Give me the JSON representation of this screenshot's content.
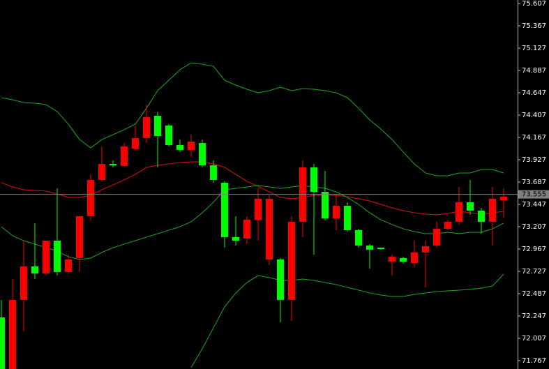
{
  "chart_data": {
    "type": "candlestick",
    "categories": [
      null,
      null,
      null,
      null,
      null,
      null,
      null,
      null,
      null,
      null,
      null,
      null,
      null,
      null,
      null,
      null,
      null,
      null,
      null,
      null,
      null,
      null,
      null,
      null,
      null,
      null,
      null,
      null,
      null,
      null,
      null,
      null,
      null,
      null,
      null,
      null,
      null,
      null,
      null,
      null,
      null,
      null,
      null,
      null,
      null,
      null
    ],
    "open": [
      72.232,
      71.677,
      72.42,
      72.78,
      72.705,
      73.057,
      72.72,
      72.87,
      73.32,
      73.71,
      73.882,
      73.86,
      74.047,
      74.16,
      74.4,
      74.295,
      74.085,
      74.032,
      74.107,
      73.867,
      73.68,
      73.095,
      73.08,
      73.282,
      72.855,
      72.855,
      72.42,
      73.26,
      73.845,
      73.582,
      73.297,
      73.432,
      73.17,
      73.005,
      72.982,
      72.832,
      72.87,
      72.817,
      72.93,
      73.005,
      73.185,
      73.26,
      73.47,
      73.38,
      73.26,
      73.492
    ],
    "high": [
      72.42,
      72.644,
      73.057,
      73.245,
      73.057,
      73.62,
      72.907,
      73.32,
      73.77,
      74.07,
      73.92,
      74.107,
      74.295,
      74.52,
      74.445,
      74.31,
      74.145,
      74.197,
      74.145,
      73.92,
      73.695,
      73.32,
      73.32,
      73.62,
      73.545,
      72.87,
      73.32,
      73.92,
      73.882,
      73.807,
      73.56,
      73.47,
      73.185,
      73.02,
      72.982,
      72.907,
      72.885,
      73.057,
      73.057,
      73.26,
      73.282,
      73.635,
      73.71,
      73.41,
      73.635,
      73.62
    ],
    "low": [
      71.677,
      71.677,
      72.082,
      72.644,
      72.682,
      72.682,
      72.697,
      72.72,
      73.282,
      73.695,
      73.845,
      73.845,
      74.032,
      74.107,
      73.845,
      74.07,
      74.01,
      73.957,
      73.845,
      73.68,
      72.982,
      73.005,
      73.02,
      73.057,
      72.795,
      72.18,
      72.195,
      73.095,
      72.907,
      73.275,
      73.17,
      73.155,
      72.982,
      72.757,
      72.96,
      72.682,
      72.81,
      72.772,
      72.555,
      72.982,
      73.17,
      73.23,
      73.335,
      73.132,
      73.005,
      73.305
    ],
    "close": [
      71.677,
      72.42,
      72.78,
      72.705,
      73.057,
      72.72,
      72.855,
      73.32,
      73.71,
      73.882,
      73.867,
      74.07,
      74.16,
      74.385,
      74.182,
      74.085,
      74.032,
      74.122,
      73.867,
      73.71,
      73.095,
      73.057,
      73.282,
      73.507,
      73.507,
      72.42,
      73.26,
      73.845,
      73.582,
      73.297,
      73.432,
      73.17,
      73.005,
      72.96,
      72.967,
      72.885,
      72.832,
      72.93,
      72.997,
      73.185,
      73.26,
      73.47,
      73.38,
      73.26,
      73.507,
      73.53
    ],
    "up_color": "#ff0000",
    "down_color": "#00ff00",
    "lines": [
      {
        "color": "#1fa81f",
        "values": [
          74.595,
          74.572,
          74.542,
          74.535,
          74.52,
          74.445,
          74.31,
          74.145,
          74.055,
          74.145,
          74.197,
          74.25,
          74.31,
          74.482,
          74.67,
          74.782,
          74.895,
          74.97,
          74.955,
          74.932,
          74.782,
          74.73,
          74.685,
          74.647,
          74.67,
          74.707,
          74.67,
          74.692,
          74.685,
          74.67,
          74.647,
          74.595,
          74.482,
          74.355,
          74.257,
          74.145,
          74.01,
          73.882,
          73.785,
          73.755,
          73.755,
          73.785,
          73.785,
          73.822,
          73.822,
          73.785
        ]
      },
      {
        "color": "#e01010",
        "values": [
          73.68,
          73.635,
          73.605,
          73.597,
          73.59,
          73.56,
          73.522,
          73.522,
          73.545,
          73.605,
          73.657,
          73.71,
          73.77,
          73.845,
          73.867,
          73.882,
          73.897,
          73.905,
          73.905,
          73.882,
          73.845,
          73.77,
          73.695,
          73.642,
          73.582,
          73.522,
          73.507,
          73.522,
          73.545,
          73.545,
          73.545,
          73.53,
          73.507,
          73.485,
          73.447,
          73.41,
          73.38,
          73.357,
          73.342,
          73.335,
          73.35,
          73.372,
          73.357,
          73.342,
          73.357,
          73.372
        ]
      },
      {
        "color": "#1fa81f",
        "values": [
          73.207,
          73.11,
          73.057,
          73.02,
          72.982,
          72.945,
          72.885,
          72.855,
          72.87,
          72.93,
          72.982,
          73.02,
          73.057,
          73.095,
          73.132,
          73.17,
          73.207,
          73.26,
          73.357,
          73.47,
          73.605,
          73.62,
          73.635,
          73.65,
          73.635,
          73.62,
          73.635,
          73.65,
          73.635,
          73.62,
          73.582,
          73.522,
          73.447,
          73.357,
          73.282,
          73.23,
          73.185,
          73.155,
          73.132,
          73.132,
          73.147,
          73.132,
          73.147,
          73.147,
          73.185,
          73.245
        ]
      },
      {
        "color": "#1fa81f",
        "values": [
          null,
          null,
          null,
          null,
          null,
          null,
          null,
          null,
          null,
          null,
          null,
          null,
          null,
          null,
          null,
          null,
          null,
          71.692,
          71.895,
          72.12,
          72.345,
          72.495,
          72.607,
          72.682,
          72.66,
          72.63,
          72.63,
          72.645,
          72.63,
          72.607,
          72.585,
          72.555,
          72.525,
          72.495,
          72.472,
          72.457,
          72.457,
          72.48,
          72.495,
          72.51,
          72.517,
          72.525,
          72.532,
          72.547,
          72.57,
          72.697
        ]
      }
    ],
    "current_price": 73.555,
    "ylim": [
      71.677,
      75.645
    ],
    "yticks": [
      75.607,
      75.367,
      75.127,
      74.887,
      74.647,
      74.407,
      74.167,
      73.927,
      73.687,
      73.447,
      73.207,
      72.967,
      72.727,
      72.487,
      72.247,
      72.007,
      71.767
    ]
  }
}
